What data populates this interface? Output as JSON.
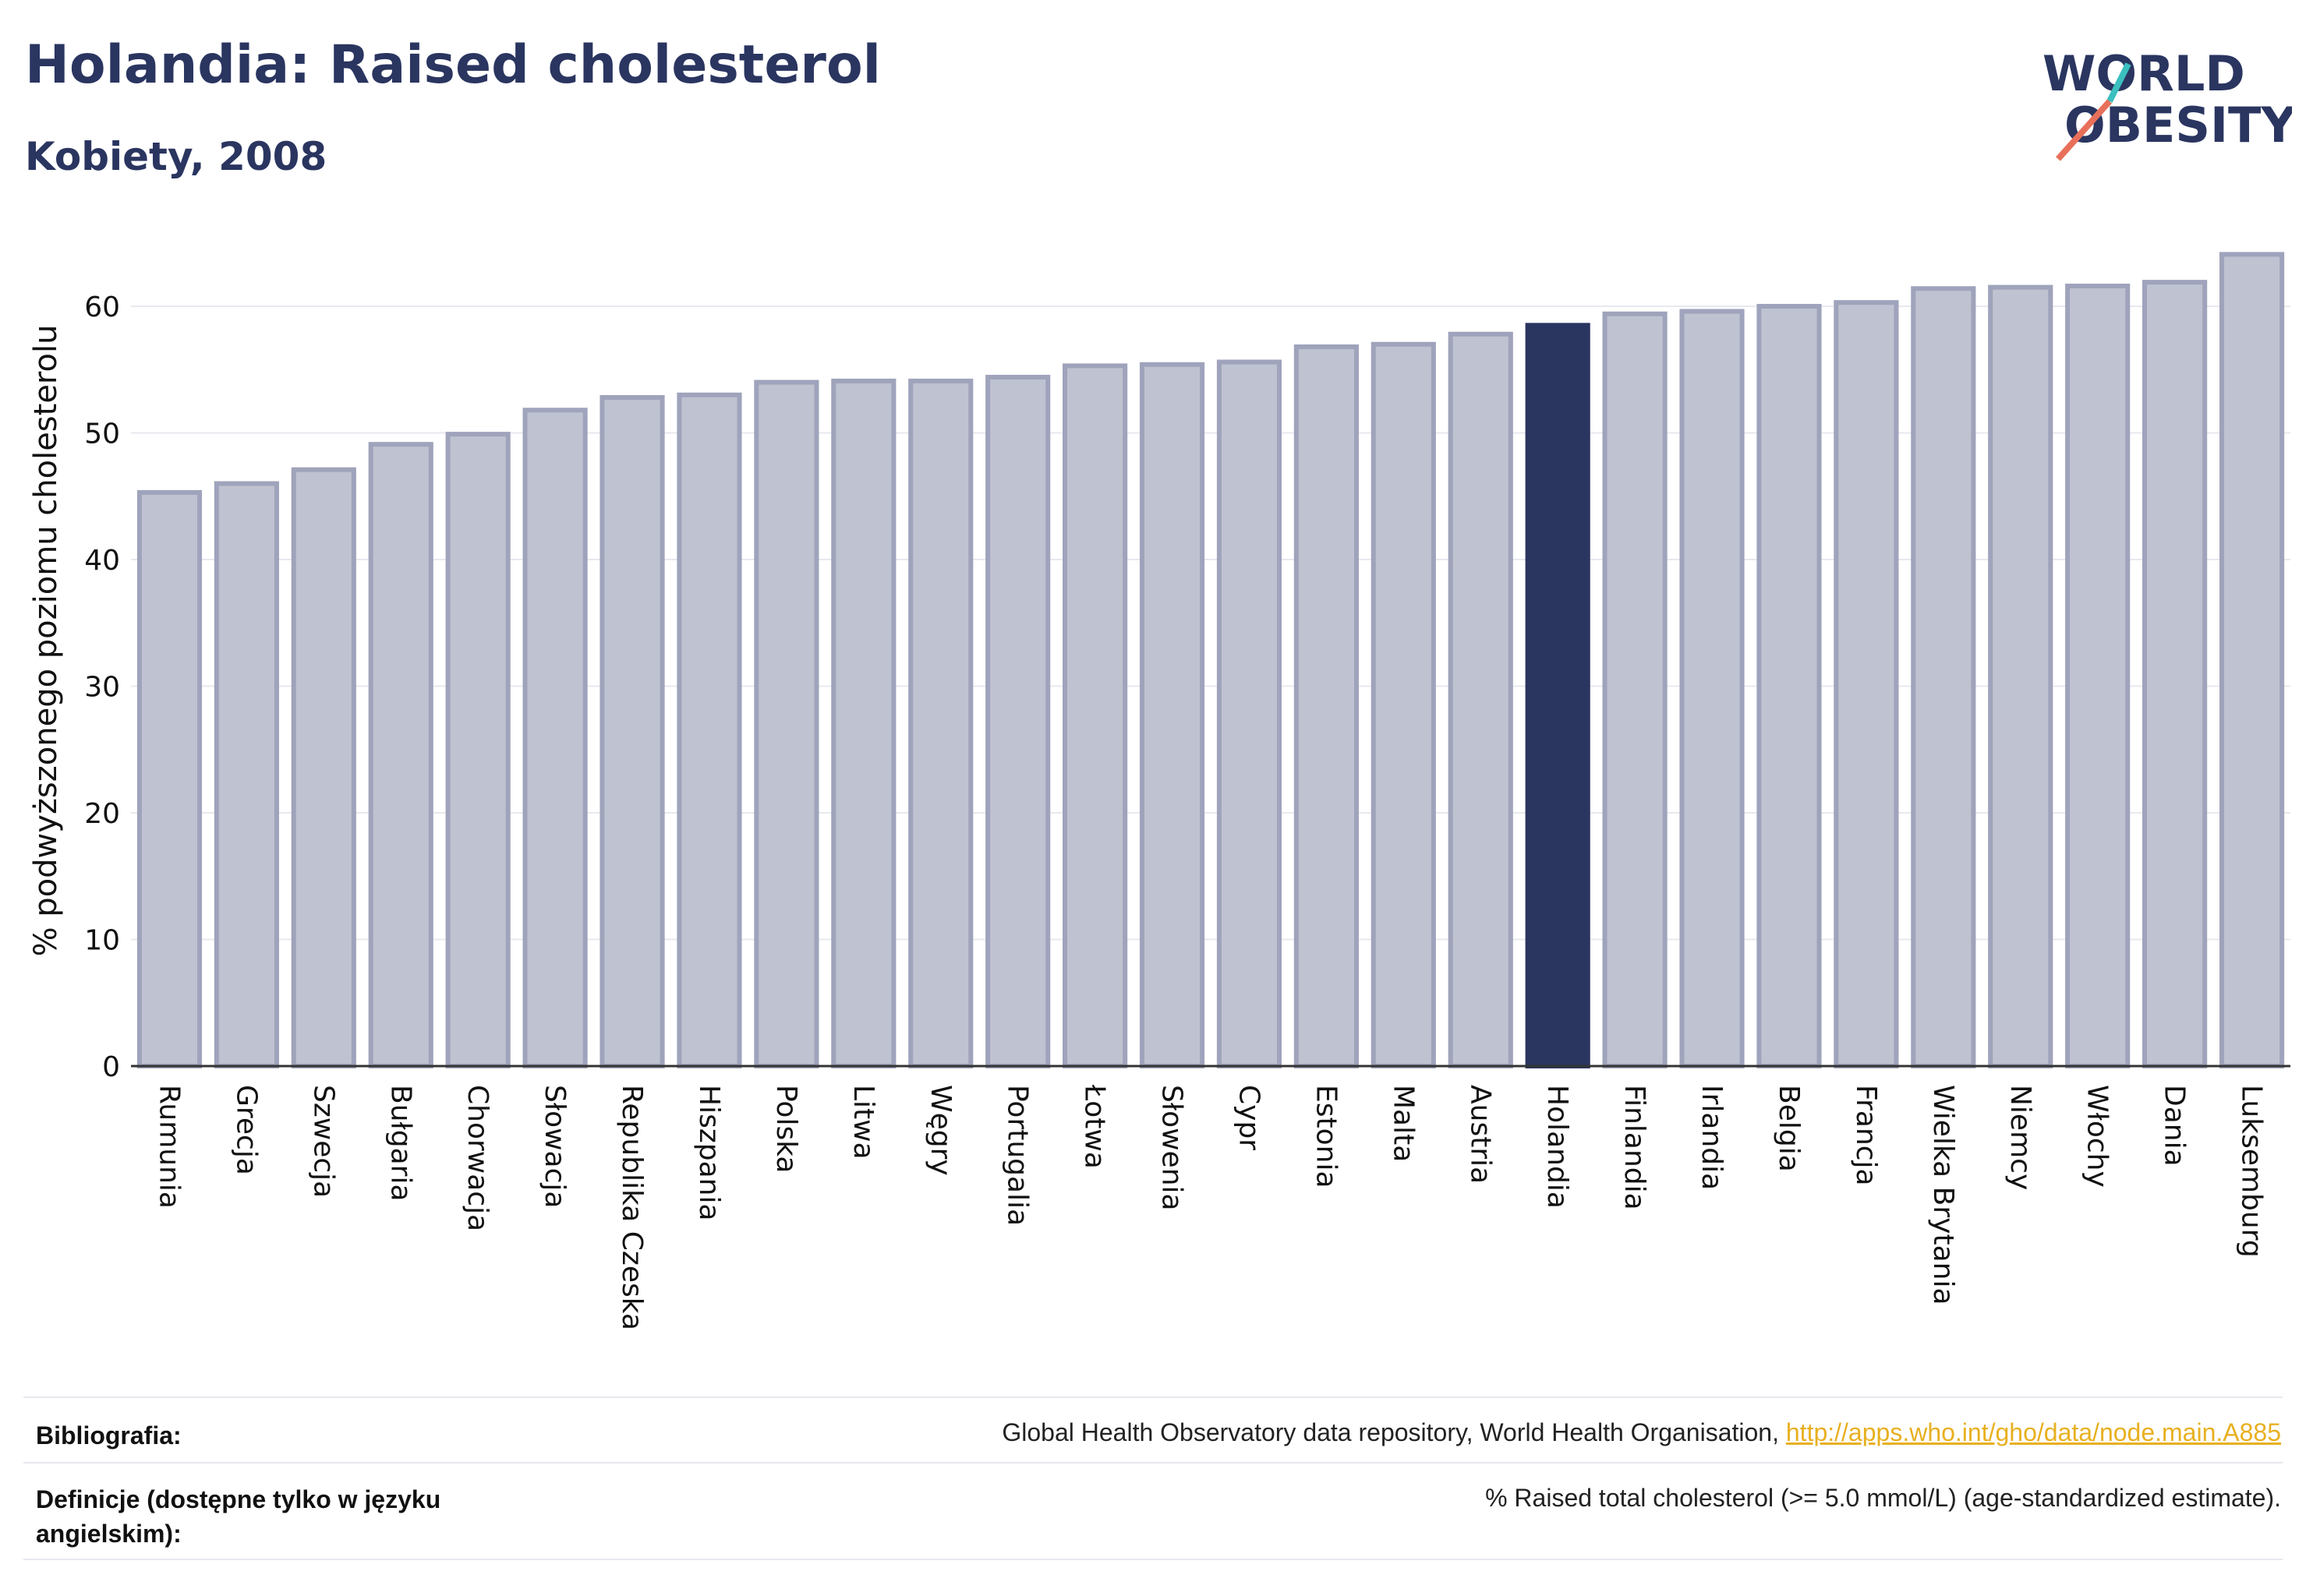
{
  "header": {
    "title": "Holandia: Raised cholesterol",
    "subtitle": "Kobiety, 2008"
  },
  "logo": {
    "line1": "WORLD",
    "line2": "OBESITY",
    "colors": {
      "text": "#2a3560",
      "slash_teal": "#3bbfbf",
      "slash_coral": "#e8705a"
    }
  },
  "chart_data": {
    "type": "bar",
    "ylabel": "% podwyższonego poziomu cholesterolu",
    "xlabel": "",
    "ylim": [
      0,
      64
    ],
    "yticks": [
      0,
      10,
      20,
      30,
      40,
      50,
      60
    ],
    "grid": true,
    "highlight": "Holandia",
    "colors": {
      "bar": "#bfc2d0",
      "bar_edge": "#9fa3bb",
      "highlight": "#2a3560"
    },
    "categories": [
      "Rumunia",
      "Grecja",
      "Szwecja",
      "Bułgaria",
      "Chorwacja",
      "Słowacja",
      "Republika Czeska",
      "Hiszpania",
      "Polska",
      "Litwa",
      "Węgry",
      "Portugalia",
      "Łotwa",
      "Słowenia",
      "Cypr",
      "Estonia",
      "Malta",
      "Austria",
      "Holandia",
      "Finlandia",
      "Irlandia",
      "Belgia",
      "Francja",
      "Wielka Brytania",
      "Niemcy",
      "Włochy",
      "Dania",
      "Luksemburg"
    ],
    "values": [
      45.3,
      46.0,
      47.1,
      49.1,
      49.9,
      51.8,
      52.8,
      53.0,
      54.0,
      54.1,
      54.1,
      54.4,
      55.3,
      55.4,
      55.6,
      56.8,
      57.0,
      57.8,
      58.5,
      59.4,
      59.6,
      60.0,
      60.3,
      61.4,
      61.5,
      61.6,
      61.9,
      64.1
    ]
  },
  "footer": {
    "bibliography_label": "Bibliografia:",
    "bibliography_text": "Global Health Observatory data repository, World Health Organisation, ",
    "bibliography_link": "http://apps.who.int/gho/data/node.main.A885",
    "definitions_label": "Definicje (dostępne tylko w języku angielskim):",
    "definitions_text": "% Raised total cholesterol (>= 5.0 mmol/L) (age-standardized estimate)."
  }
}
